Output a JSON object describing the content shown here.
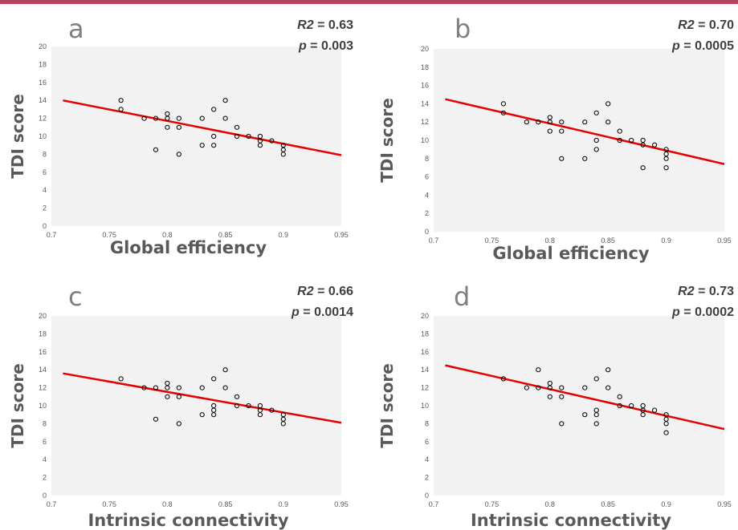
{
  "chart_data": [
    {
      "type": "scatter",
      "panel_letter": "a",
      "xlabel": "Global efficiency",
      "ylabel": "TDI score",
      "xlim": [
        0.7,
        0.95
      ],
      "ylim": [
        0,
        20
      ],
      "x_ticks": [
        "0.7",
        "0.75",
        "0.8",
        "0.85",
        "0.9",
        "0.95"
      ],
      "y_ticks": [
        "0",
        "2",
        "4",
        "6",
        "8",
        "10",
        "12",
        "14",
        "16",
        "18",
        "20"
      ],
      "stats": {
        "r2_label": "R2",
        "r2_value": "= 0.63",
        "p_label": "p",
        "p_value": "= 0.003"
      },
      "points": [
        [
          0.76,
          14
        ],
        [
          0.76,
          13
        ],
        [
          0.78,
          12
        ],
        [
          0.79,
          12
        ],
        [
          0.79,
          8.5
        ],
        [
          0.8,
          12.5
        ],
        [
          0.8,
          12
        ],
        [
          0.8,
          11
        ],
        [
          0.81,
          12
        ],
        [
          0.81,
          11
        ],
        [
          0.81,
          8
        ],
        [
          0.83,
          12
        ],
        [
          0.83,
          9
        ],
        [
          0.84,
          13
        ],
        [
          0.84,
          10
        ],
        [
          0.84,
          9
        ],
        [
          0.85,
          14
        ],
        [
          0.85,
          12
        ],
        [
          0.86,
          11
        ],
        [
          0.86,
          10
        ],
        [
          0.87,
          10
        ],
        [
          0.88,
          10
        ],
        [
          0.88,
          9.5
        ],
        [
          0.88,
          9
        ],
        [
          0.89,
          9.5
        ],
        [
          0.9,
          9
        ],
        [
          0.9,
          8.5
        ],
        [
          0.9,
          8
        ]
      ],
      "trendline": {
        "x": [
          0.71,
          0.95
        ],
        "y": [
          14,
          7.9
        ]
      },
      "grid": false,
      "trend_color": "#e60000"
    },
    {
      "type": "scatter",
      "panel_letter": "b",
      "xlabel": "Global efficiency",
      "ylabel": "TDI score",
      "xlim": [
        0.7,
        0.95
      ],
      "ylim": [
        0,
        20
      ],
      "x_ticks": [
        "0.7",
        "0.75",
        "0.8",
        "0.85",
        "0.9",
        "0.95"
      ],
      "y_ticks": [
        "0",
        "2",
        "4",
        "6",
        "8",
        "10",
        "12",
        "14",
        "16",
        "18",
        "20"
      ],
      "stats": {
        "r2_label": "R2",
        "r2_value": "= 0.70",
        "p_label": "p",
        "p_value": "= 0.0005"
      },
      "points": [
        [
          0.76,
          14
        ],
        [
          0.76,
          13
        ],
        [
          0.78,
          12
        ],
        [
          0.79,
          12
        ],
        [
          0.8,
          12.5
        ],
        [
          0.8,
          12
        ],
        [
          0.8,
          11
        ],
        [
          0.81,
          12
        ],
        [
          0.81,
          11
        ],
        [
          0.81,
          8
        ],
        [
          0.83,
          12
        ],
        [
          0.83,
          8
        ],
        [
          0.84,
          13
        ],
        [
          0.84,
          10
        ],
        [
          0.84,
          9
        ],
        [
          0.85,
          14
        ],
        [
          0.85,
          12
        ],
        [
          0.86,
          11
        ],
        [
          0.86,
          10
        ],
        [
          0.87,
          10
        ],
        [
          0.88,
          10
        ],
        [
          0.88,
          9.5
        ],
        [
          0.88,
          7
        ],
        [
          0.89,
          9.5
        ],
        [
          0.9,
          9
        ],
        [
          0.9,
          8.5
        ],
        [
          0.9,
          8
        ],
        [
          0.9,
          7
        ]
      ],
      "trendline": {
        "x": [
          0.71,
          0.95
        ],
        "y": [
          14.5,
          7.4
        ]
      },
      "grid": false,
      "trend_color": "#e60000"
    },
    {
      "type": "scatter",
      "panel_letter": "c",
      "xlabel": "Intrinsic connectivity",
      "ylabel": "TDI score",
      "xlim": [
        0.7,
        0.95
      ],
      "ylim": [
        0,
        20
      ],
      "x_ticks": [
        "0.7",
        "0.75",
        "0.8",
        "0.85",
        "0.9",
        "0.95"
      ],
      "y_ticks": [
        "0",
        "2",
        "4",
        "6",
        "8",
        "10",
        "12",
        "14",
        "16",
        "18",
        "20"
      ],
      "stats": {
        "r2_label": "R2",
        "r2_value": "= 0.66",
        "p_label": "p",
        "p_value": "= 0.0014"
      },
      "points": [
        [
          0.76,
          13
        ],
        [
          0.78,
          12
        ],
        [
          0.79,
          12
        ],
        [
          0.79,
          8.5
        ],
        [
          0.8,
          12.5
        ],
        [
          0.8,
          12
        ],
        [
          0.8,
          11
        ],
        [
          0.81,
          12
        ],
        [
          0.81,
          11
        ],
        [
          0.81,
          8
        ],
        [
          0.83,
          12
        ],
        [
          0.83,
          9
        ],
        [
          0.84,
          13
        ],
        [
          0.84,
          10
        ],
        [
          0.84,
          9.5
        ],
        [
          0.84,
          9
        ],
        [
          0.85,
          14
        ],
        [
          0.85,
          12
        ],
        [
          0.86,
          11
        ],
        [
          0.86,
          10
        ],
        [
          0.87,
          10
        ],
        [
          0.88,
          10
        ],
        [
          0.88,
          9.5
        ],
        [
          0.88,
          9
        ],
        [
          0.89,
          9.5
        ],
        [
          0.9,
          9
        ],
        [
          0.9,
          8.5
        ],
        [
          0.9,
          8
        ]
      ],
      "trendline": {
        "x": [
          0.71,
          0.95
        ],
        "y": [
          13.6,
          8.1
        ]
      },
      "grid": false,
      "trend_color": "#e60000"
    },
    {
      "type": "scatter",
      "panel_letter": "d",
      "xlabel": "Intrinsic connectivity",
      "ylabel": "TDI score",
      "xlim": [
        0.7,
        0.95
      ],
      "ylim": [
        0,
        20
      ],
      "x_ticks": [
        "0.7",
        "0.75",
        "0.8",
        "0.85",
        "0.9",
        "0.95"
      ],
      "y_ticks": [
        "0",
        "2",
        "4",
        "6",
        "8",
        "10",
        "12",
        "14",
        "16",
        "18",
        "20"
      ],
      "stats": {
        "r2_label": "R2",
        "r2_value": "= 0.73",
        "p_label": "p",
        "p_value": "= 0.0002"
      },
      "points": [
        [
          0.76,
          13
        ],
        [
          0.78,
          12
        ],
        [
          0.79,
          14
        ],
        [
          0.79,
          12
        ],
        [
          0.8,
          12.5
        ],
        [
          0.8,
          12
        ],
        [
          0.8,
          11
        ],
        [
          0.81,
          12
        ],
        [
          0.81,
          11
        ],
        [
          0.81,
          8
        ],
        [
          0.83,
          12
        ],
        [
          0.83,
          9
        ],
        [
          0.84,
          13
        ],
        [
          0.84,
          9.5
        ],
        [
          0.84,
          9
        ],
        [
          0.84,
          8
        ],
        [
          0.85,
          14
        ],
        [
          0.85,
          12
        ],
        [
          0.86,
          11
        ],
        [
          0.86,
          10
        ],
        [
          0.87,
          10
        ],
        [
          0.88,
          10
        ],
        [
          0.88,
          9.5
        ],
        [
          0.88,
          9
        ],
        [
          0.89,
          9.5
        ],
        [
          0.9,
          9
        ],
        [
          0.9,
          8.5
        ],
        [
          0.9,
          8
        ],
        [
          0.9,
          7
        ]
      ],
      "trendline": {
        "x": [
          0.71,
          0.95
        ],
        "y": [
          14.5,
          7.4
        ]
      },
      "grid": false,
      "trend_color": "#e60000"
    }
  ]
}
